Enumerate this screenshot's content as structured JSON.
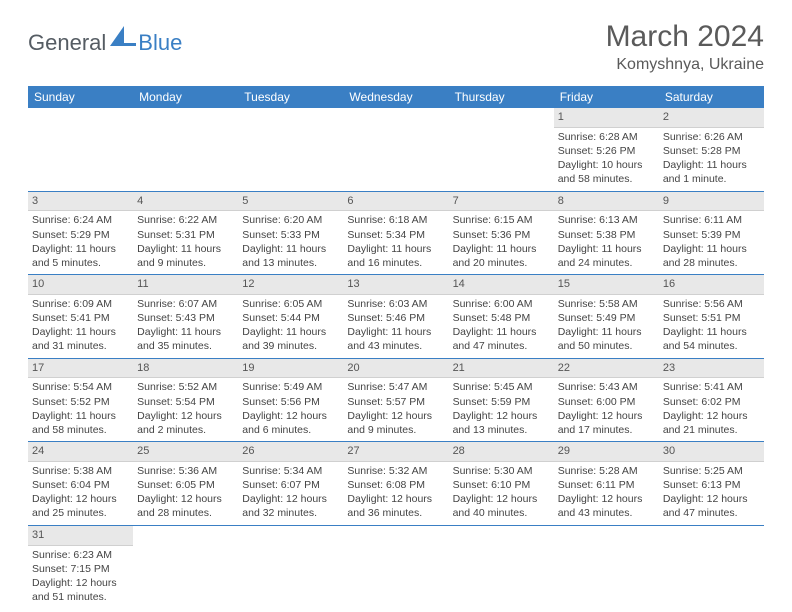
{
  "logo": {
    "general": "General",
    "blue": "Blue"
  },
  "title": "March 2024",
  "location": "Komyshnya, Ukraine",
  "colors": {
    "header_bg": "#3a7fc4",
    "header_text": "#ffffff",
    "daynum_bg": "#e8e8e8",
    "text": "#444444",
    "divider": "#3a7fc4"
  },
  "weekdays": [
    "Sunday",
    "Monday",
    "Tuesday",
    "Wednesday",
    "Thursday",
    "Friday",
    "Saturday"
  ],
  "days": {
    "1": {
      "sunrise": "Sunrise: 6:28 AM",
      "sunset": "Sunset: 5:26 PM",
      "daylight": "Daylight: 10 hours and 58 minutes."
    },
    "2": {
      "sunrise": "Sunrise: 6:26 AM",
      "sunset": "Sunset: 5:28 PM",
      "daylight": "Daylight: 11 hours and 1 minute."
    },
    "3": {
      "sunrise": "Sunrise: 6:24 AM",
      "sunset": "Sunset: 5:29 PM",
      "daylight": "Daylight: 11 hours and 5 minutes."
    },
    "4": {
      "sunrise": "Sunrise: 6:22 AM",
      "sunset": "Sunset: 5:31 PM",
      "daylight": "Daylight: 11 hours and 9 minutes."
    },
    "5": {
      "sunrise": "Sunrise: 6:20 AM",
      "sunset": "Sunset: 5:33 PM",
      "daylight": "Daylight: 11 hours and 13 minutes."
    },
    "6": {
      "sunrise": "Sunrise: 6:18 AM",
      "sunset": "Sunset: 5:34 PM",
      "daylight": "Daylight: 11 hours and 16 minutes."
    },
    "7": {
      "sunrise": "Sunrise: 6:15 AM",
      "sunset": "Sunset: 5:36 PM",
      "daylight": "Daylight: 11 hours and 20 minutes."
    },
    "8": {
      "sunrise": "Sunrise: 6:13 AM",
      "sunset": "Sunset: 5:38 PM",
      "daylight": "Daylight: 11 hours and 24 minutes."
    },
    "9": {
      "sunrise": "Sunrise: 6:11 AM",
      "sunset": "Sunset: 5:39 PM",
      "daylight": "Daylight: 11 hours and 28 minutes."
    },
    "10": {
      "sunrise": "Sunrise: 6:09 AM",
      "sunset": "Sunset: 5:41 PM",
      "daylight": "Daylight: 11 hours and 31 minutes."
    },
    "11": {
      "sunrise": "Sunrise: 6:07 AM",
      "sunset": "Sunset: 5:43 PM",
      "daylight": "Daylight: 11 hours and 35 minutes."
    },
    "12": {
      "sunrise": "Sunrise: 6:05 AM",
      "sunset": "Sunset: 5:44 PM",
      "daylight": "Daylight: 11 hours and 39 minutes."
    },
    "13": {
      "sunrise": "Sunrise: 6:03 AM",
      "sunset": "Sunset: 5:46 PM",
      "daylight": "Daylight: 11 hours and 43 minutes."
    },
    "14": {
      "sunrise": "Sunrise: 6:00 AM",
      "sunset": "Sunset: 5:48 PM",
      "daylight": "Daylight: 11 hours and 47 minutes."
    },
    "15": {
      "sunrise": "Sunrise: 5:58 AM",
      "sunset": "Sunset: 5:49 PM",
      "daylight": "Daylight: 11 hours and 50 minutes."
    },
    "16": {
      "sunrise": "Sunrise: 5:56 AM",
      "sunset": "Sunset: 5:51 PM",
      "daylight": "Daylight: 11 hours and 54 minutes."
    },
    "17": {
      "sunrise": "Sunrise: 5:54 AM",
      "sunset": "Sunset: 5:52 PM",
      "daylight": "Daylight: 11 hours and 58 minutes."
    },
    "18": {
      "sunrise": "Sunrise: 5:52 AM",
      "sunset": "Sunset: 5:54 PM",
      "daylight": "Daylight: 12 hours and 2 minutes."
    },
    "19": {
      "sunrise": "Sunrise: 5:49 AM",
      "sunset": "Sunset: 5:56 PM",
      "daylight": "Daylight: 12 hours and 6 minutes."
    },
    "20": {
      "sunrise": "Sunrise: 5:47 AM",
      "sunset": "Sunset: 5:57 PM",
      "daylight": "Daylight: 12 hours and 9 minutes."
    },
    "21": {
      "sunrise": "Sunrise: 5:45 AM",
      "sunset": "Sunset: 5:59 PM",
      "daylight": "Daylight: 12 hours and 13 minutes."
    },
    "22": {
      "sunrise": "Sunrise: 5:43 AM",
      "sunset": "Sunset: 6:00 PM",
      "daylight": "Daylight: 12 hours and 17 minutes."
    },
    "23": {
      "sunrise": "Sunrise: 5:41 AM",
      "sunset": "Sunset: 6:02 PM",
      "daylight": "Daylight: 12 hours and 21 minutes."
    },
    "24": {
      "sunrise": "Sunrise: 5:38 AM",
      "sunset": "Sunset: 6:04 PM",
      "daylight": "Daylight: 12 hours and 25 minutes."
    },
    "25": {
      "sunrise": "Sunrise: 5:36 AM",
      "sunset": "Sunset: 6:05 PM",
      "daylight": "Daylight: 12 hours and 28 minutes."
    },
    "26": {
      "sunrise": "Sunrise: 5:34 AM",
      "sunset": "Sunset: 6:07 PM",
      "daylight": "Daylight: 12 hours and 32 minutes."
    },
    "27": {
      "sunrise": "Sunrise: 5:32 AM",
      "sunset": "Sunset: 6:08 PM",
      "daylight": "Daylight: 12 hours and 36 minutes."
    },
    "28": {
      "sunrise": "Sunrise: 5:30 AM",
      "sunset": "Sunset: 6:10 PM",
      "daylight": "Daylight: 12 hours and 40 minutes."
    },
    "29": {
      "sunrise": "Sunrise: 5:28 AM",
      "sunset": "Sunset: 6:11 PM",
      "daylight": "Daylight: 12 hours and 43 minutes."
    },
    "30": {
      "sunrise": "Sunrise: 5:25 AM",
      "sunset": "Sunset: 6:13 PM",
      "daylight": "Daylight: 12 hours and 47 minutes."
    },
    "31": {
      "sunrise": "Sunrise: 6:23 AM",
      "sunset": "Sunset: 7:15 PM",
      "daylight": "Daylight: 12 hours and 51 minutes."
    }
  },
  "grid": [
    [
      null,
      null,
      null,
      null,
      null,
      "1",
      "2"
    ],
    [
      "3",
      "4",
      "5",
      "6",
      "7",
      "8",
      "9"
    ],
    [
      "10",
      "11",
      "12",
      "13",
      "14",
      "15",
      "16"
    ],
    [
      "17",
      "18",
      "19",
      "20",
      "21",
      "22",
      "23"
    ],
    [
      "24",
      "25",
      "26",
      "27",
      "28",
      "29",
      "30"
    ],
    [
      "31",
      null,
      null,
      null,
      null,
      null,
      null
    ]
  ]
}
